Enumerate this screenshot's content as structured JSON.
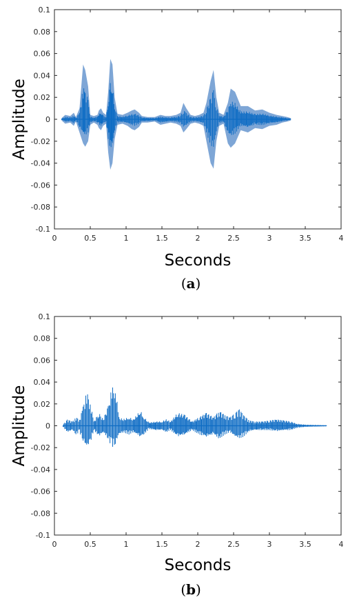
{
  "chart_data": [
    {
      "type": "area",
      "caption": "(a)",
      "caption_letter": "a",
      "xlabel": "Seconds",
      "ylabel": "Amplitude",
      "xlim": [
        0,
        4
      ],
      "ylim": [
        -0.1,
        0.1
      ],
      "xticks": [
        0,
        0.5,
        1,
        1.5,
        2,
        2.5,
        3,
        3.5,
        4
      ],
      "yticks": [
        0.1,
        0.08,
        0.06,
        0.04,
        0.02,
        0,
        -0.02,
        -0.04,
        -0.06,
        -0.08,
        -0.1
      ],
      "xtick_labels": [
        "0",
        "0.5",
        "1",
        "1.5",
        "2",
        "2.5",
        "3",
        "3.5",
        "4"
      ],
      "ytick_labels": [
        "0.1",
        "0.08",
        "0.06",
        "0.04",
        "0.02",
        "0",
        "-0.02",
        "-0.04",
        "-0.06",
        "-0.08",
        "-0.1"
      ],
      "grid": false,
      "colors": {
        "light": "#7ea6d6",
        "dark": "#0e6cc4"
      },
      "series": [
        {
          "values": [
            [
              0.1,
              0.001,
              -0.001
            ],
            [
              0.15,
              0.004,
              -0.004
            ],
            [
              0.22,
              0.003,
              -0.003
            ],
            [
              0.27,
              0.006,
              -0.006
            ],
            [
              0.3,
              0.002,
              -0.002
            ],
            [
              0.35,
              0.01,
              -0.012
            ],
            [
              0.4,
              0.05,
              -0.022
            ],
            [
              0.43,
              0.045,
              -0.025
            ],
            [
              0.47,
              0.03,
              -0.02
            ],
            [
              0.5,
              0.004,
              -0.005
            ],
            [
              0.55,
              0.003,
              -0.003
            ],
            [
              0.6,
              0.004,
              -0.005
            ],
            [
              0.62,
              0.008,
              -0.008
            ],
            [
              0.65,
              0.01,
              -0.01
            ],
            [
              0.68,
              0.006,
              -0.006
            ],
            [
              0.72,
              0.004,
              -0.004
            ],
            [
              0.75,
              0.025,
              -0.03
            ],
            [
              0.78,
              0.055,
              -0.046
            ],
            [
              0.81,
              0.05,
              -0.04
            ],
            [
              0.84,
              0.02,
              -0.018
            ],
            [
              0.88,
              0.005,
              -0.005
            ],
            [
              0.95,
              0.004,
              -0.004
            ],
            [
              1.02,
              0.006,
              -0.006
            ],
            [
              1.08,
              0.008,
              -0.009
            ],
            [
              1.12,
              0.009,
              -0.01
            ],
            [
              1.18,
              0.006,
              -0.007
            ],
            [
              1.22,
              0.003,
              -0.003
            ],
            [
              1.3,
              0.002,
              -0.003
            ],
            [
              1.4,
              0.002,
              -0.002
            ],
            [
              1.48,
              0.004,
              -0.005
            ],
            [
              1.55,
              0.003,
              -0.004
            ],
            [
              1.62,
              0.003,
              -0.003
            ],
            [
              1.7,
              0.004,
              -0.004
            ],
            [
              1.76,
              0.006,
              -0.006
            ],
            [
              1.8,
              0.015,
              -0.012
            ],
            [
              1.84,
              0.01,
              -0.009
            ],
            [
              1.9,
              0.004,
              -0.004
            ],
            [
              1.96,
              0.003,
              -0.003
            ],
            [
              2.02,
              0.004,
              -0.004
            ],
            [
              2.08,
              0.006,
              -0.006
            ],
            [
              2.12,
              0.015,
              -0.02
            ],
            [
              2.18,
              0.035,
              -0.04
            ],
            [
              2.22,
              0.045,
              -0.045
            ],
            [
              2.26,
              0.02,
              -0.02
            ],
            [
              2.3,
              0.006,
              -0.006
            ],
            [
              2.36,
              0.004,
              -0.004
            ],
            [
              2.42,
              0.015,
              -0.022
            ],
            [
              2.46,
              0.028,
              -0.026
            ],
            [
              2.52,
              0.025,
              -0.022
            ],
            [
              2.6,
              0.012,
              -0.01
            ],
            [
              2.7,
              0.012,
              -0.012
            ],
            [
              2.8,
              0.008,
              -0.008
            ],
            [
              2.9,
              0.009,
              -0.009
            ],
            [
              3.0,
              0.006,
              -0.006
            ],
            [
              3.1,
              0.004,
              -0.005
            ],
            [
              3.18,
              0.003,
              -0.003
            ],
            [
              3.25,
              0.002,
              -0.002
            ],
            [
              3.3,
              0.001,
              -0.001
            ]
          ]
        }
      ]
    },
    {
      "type": "area",
      "caption": "(b)",
      "caption_letter": "b",
      "xlabel": "Seconds",
      "ylabel": "Amplitude",
      "xlim": [
        0,
        4
      ],
      "ylim": [
        -0.1,
        0.1
      ],
      "xticks": [
        0,
        0.5,
        1,
        1.5,
        2,
        2.5,
        3,
        3.5,
        4
      ],
      "yticks": [
        0.1,
        0.08,
        0.06,
        0.04,
        0.02,
        0,
        -0.02,
        -0.04,
        -0.06,
        -0.08,
        -0.1
      ],
      "xtick_labels": [
        "0",
        "0.5",
        "1",
        "1.5",
        "2",
        "2.5",
        "3",
        "3.5",
        "4"
      ],
      "ytick_labels": [
        "0.1",
        "0.08",
        "0.06",
        "0.04",
        "0.02",
        "0",
        "-0.02",
        "-0.04",
        "-0.06",
        "-0.08",
        "-0.1"
      ],
      "grid": false,
      "colors": {
        "dark": "#0e6cc4"
      },
      "series": [
        {
          "values": [
            [
              0.12,
              0.001,
              -0.001
            ],
            [
              0.18,
              0.006,
              -0.006
            ],
            [
              0.25,
              0.004,
              -0.004
            ],
            [
              0.3,
              0.008,
              -0.008
            ],
            [
              0.35,
              0.006,
              -0.006
            ],
            [
              0.4,
              0.018,
              -0.014
            ],
            [
              0.45,
              0.032,
              -0.02
            ],
            [
              0.5,
              0.022,
              -0.016
            ],
            [
              0.55,
              0.004,
              -0.004
            ],
            [
              0.62,
              0.012,
              -0.01
            ],
            [
              0.68,
              0.006,
              -0.006
            ],
            [
              0.75,
              0.018,
              -0.012
            ],
            [
              0.8,
              0.035,
              -0.02
            ],
            [
              0.85,
              0.036,
              -0.017
            ],
            [
              0.9,
              0.008,
              -0.008
            ],
            [
              0.96,
              0.006,
              -0.006
            ],
            [
              1.04,
              0.008,
              -0.008
            ],
            [
              1.1,
              0.006,
              -0.006
            ],
            [
              1.2,
              0.014,
              -0.01
            ],
            [
              1.25,
              0.008,
              -0.008
            ],
            [
              1.32,
              0.003,
              -0.003
            ],
            [
              1.42,
              0.004,
              -0.004
            ],
            [
              1.5,
              0.004,
              -0.004
            ],
            [
              1.56,
              0.006,
              -0.006
            ],
            [
              1.62,
              0.004,
              -0.004
            ],
            [
              1.72,
              0.012,
              -0.01
            ],
            [
              1.82,
              0.01,
              -0.008
            ],
            [
              1.92,
              0.004,
              -0.004
            ],
            [
              2.02,
              0.008,
              -0.008
            ],
            [
              2.12,
              0.012,
              -0.01
            ],
            [
              2.22,
              0.008,
              -0.008
            ],
            [
              2.3,
              0.014,
              -0.012
            ],
            [
              2.38,
              0.01,
              -0.008
            ],
            [
              2.45,
              0.008,
              -0.006
            ],
            [
              2.52,
              0.012,
              -0.01
            ],
            [
              2.58,
              0.016,
              -0.012
            ],
            [
              2.64,
              0.01,
              -0.01
            ],
            [
              2.72,
              0.005,
              -0.005
            ],
            [
              2.8,
              0.004,
              -0.004
            ],
            [
              2.9,
              0.004,
              -0.004
            ],
            [
              3.0,
              0.005,
              -0.004
            ],
            [
              3.1,
              0.006,
              -0.005
            ],
            [
              3.2,
              0.005,
              -0.004
            ],
            [
              3.3,
              0.004,
              -0.004
            ],
            [
              3.38,
              0.002,
              -0.002
            ],
            [
              3.5,
              0.001,
              -0.001
            ],
            [
              3.8,
              0.0005,
              -0.0005
            ]
          ]
        }
      ]
    }
  ]
}
